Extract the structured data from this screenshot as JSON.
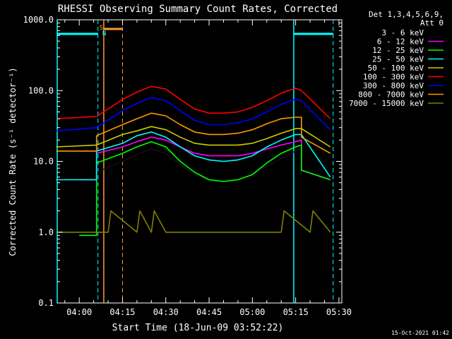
{
  "chart_data": {
    "type": "line",
    "title": "RHESSI Observing Summary Count Rates, Corrected",
    "xlabel": "Start Time (18-Jun-09 03:52:22)",
    "ylabel": "Corrected Count Rate (s⁻¹ detector⁻¹)",
    "yscale": "log",
    "xlim": [
      "03:52:22",
      "05:31:00"
    ],
    "ylim": [
      0.1,
      1000
    ],
    "x_ticks": [
      "04:00",
      "04:15",
      "04:30",
      "04:45",
      "05:00",
      "05:15",
      "05:30"
    ],
    "y_ticks": [
      "0.1",
      "1.0",
      "10.0",
      "100.0",
      "1000.0"
    ],
    "legend_header": [
      "Det 1,3,4,5,6,9,",
      "Att 0"
    ],
    "legend_position": "right",
    "series": [
      {
        "name": "3 - 6 keV",
        "color": "#000000",
        "x": [
          "04:00",
          "04:06",
          "04:06",
          "04:15",
          "04:20",
          "04:25",
          "04:30",
          "04:35",
          "04:40",
          "04:45",
          "04:50",
          "04:55",
          "05:00",
          "05:05",
          "05:10",
          "05:15",
          "05:17",
          "05:17",
          "05:27"
        ],
        "values": [
          5.5,
          5.5,
          7,
          10,
          12.5,
          15,
          13,
          9,
          6.5,
          5.5,
          5.5,
          5.5,
          6.5,
          8.5,
          11,
          14,
          15,
          7.5,
          5.5
        ]
      },
      {
        "name": "6 - 12 keV",
        "color": "#ff00ff",
        "x": [
          "04:00",
          "04:06",
          "04:06",
          "04:15",
          "04:20",
          "04:25",
          "04:30",
          "04:35",
          "04:40",
          "04:45",
          "04:50",
          "04:55",
          "05:00",
          "05:05",
          "05:10",
          "05:15",
          "05:17",
          "05:17",
          "05:27"
        ],
        "values": [
          5.5,
          5.5,
          13,
          16,
          19,
          22,
          20,
          16,
          13,
          12,
          12,
          12,
          13,
          15,
          17,
          19,
          20,
          7.5,
          5.5
        ]
      },
      {
        "name": "12 - 25 keV",
        "color": "#00ff00",
        "x": [
          "04:00",
          "04:06",
          "04:06",
          "04:15",
          "04:20",
          "04:25",
          "04:30",
          "04:35",
          "04:40",
          "04:45",
          "04:50",
          "04:55",
          "05:00",
          "05:05",
          "05:10",
          "05:15",
          "05:17",
          "05:17",
          "05:27"
        ],
        "values": [
          0.9,
          0.9,
          9.5,
          13,
          16,
          19,
          16,
          10,
          7,
          5.5,
          5.2,
          5.5,
          6.5,
          9.5,
          13,
          16,
          17,
          7.5,
          5.5
        ]
      },
      {
        "name": "25 - 50 keV",
        "color": "#00ffff",
        "x": [
          "03:52",
          "04:06",
          "04:06",
          "04:15",
          "04:20",
          "04:25",
          "04:30",
          "04:35",
          "04:40",
          "04:45",
          "04:50",
          "04:55",
          "05:00",
          "05:05",
          "05:10",
          "05:15",
          "05:17",
          "05:27"
        ],
        "values": [
          5.5,
          5.5,
          14,
          18,
          23,
          26,
          22,
          16,
          12,
          10.5,
          10,
          10.5,
          12,
          16,
          20,
          24,
          24,
          6
        ]
      },
      {
        "name": "50 - 100 keV",
        "color": "#cccc00",
        "x": [
          "03:52",
          "04:06",
          "04:15",
          "04:20",
          "04:25",
          "04:30",
          "04:35",
          "04:40",
          "04:45",
          "04:50",
          "04:55",
          "05:00",
          "05:05",
          "05:10",
          "05:15",
          "05:17",
          "05:27"
        ],
        "values": [
          16,
          17,
          24,
          27,
          31,
          28,
          22,
          18,
          17,
          17,
          17,
          18,
          21,
          25,
          29,
          29,
          16
        ]
      },
      {
        "name": "100 - 300 keV",
        "color": "#ff0000",
        "x": [
          "03:52",
          "04:06",
          "04:15",
          "04:20",
          "04:25",
          "04:30",
          "04:35",
          "04:40",
          "04:45",
          "04:50",
          "04:55",
          "05:00",
          "05:05",
          "05:10",
          "05:15",
          "05:17",
          "05:27"
        ],
        "values": [
          40,
          43,
          75,
          95,
          115,
          105,
          75,
          55,
          48,
          48,
          50,
          58,
          72,
          92,
          108,
          100,
          40
        ]
      },
      {
        "name": "300 - 800 keV",
        "color": "#0000ff",
        "x": [
          "03:52",
          "04:06",
          "04:15",
          "04:20",
          "04:25",
          "04:30",
          "04:35",
          "04:40",
          "04:45",
          "04:50",
          "04:55",
          "05:00",
          "05:05",
          "05:10",
          "05:15",
          "05:17",
          "05:27"
        ],
        "values": [
          27,
          30,
          52,
          66,
          80,
          72,
          52,
          38,
          33,
          33,
          35,
          40,
          50,
          64,
          76,
          72,
          28
        ]
      },
      {
        "name": "800 - 7000 keV",
        "color": "#ff9900",
        "x": [
          "03:52",
          "04:06",
          "04:06",
          "04:15",
          "04:20",
          "04:25",
          "04:30",
          "04:35",
          "04:40",
          "04:45",
          "04:50",
          "04:55",
          "05:00",
          "05:05",
          "05:10",
          "05:15",
          "05:17",
          "05:17",
          "05:27"
        ],
        "values": [
          14,
          14,
          23,
          33,
          40,
          48,
          44,
          33,
          26,
          24,
          24,
          25,
          28,
          34,
          40,
          42,
          42,
          22,
          13
        ]
      },
      {
        "name": "7000 - 15000 keV",
        "color": "#808000",
        "x": [
          "03:52",
          "04:06",
          "04:10",
          "04:11",
          "04:20",
          "04:21",
          "04:25",
          "04:26",
          "04:30",
          "04:31",
          "05:10",
          "05:11",
          "05:20",
          "05:21",
          "05:27"
        ],
        "values": [
          1.0,
          1.0,
          1.0,
          2.0,
          1.0,
          2.0,
          1.0,
          2.0,
          1.0,
          1.0,
          1.0,
          2.0,
          1.0,
          2.0,
          1.0
        ]
      }
    ],
    "flags": {
      "saa_letter": "S",
      "night_letter": "N",
      "saa_color": "#ff9933",
      "night_color": "#00ffff"
    }
  },
  "footer": {
    "date_stamp": "15-Oct-2021 01:42"
  }
}
